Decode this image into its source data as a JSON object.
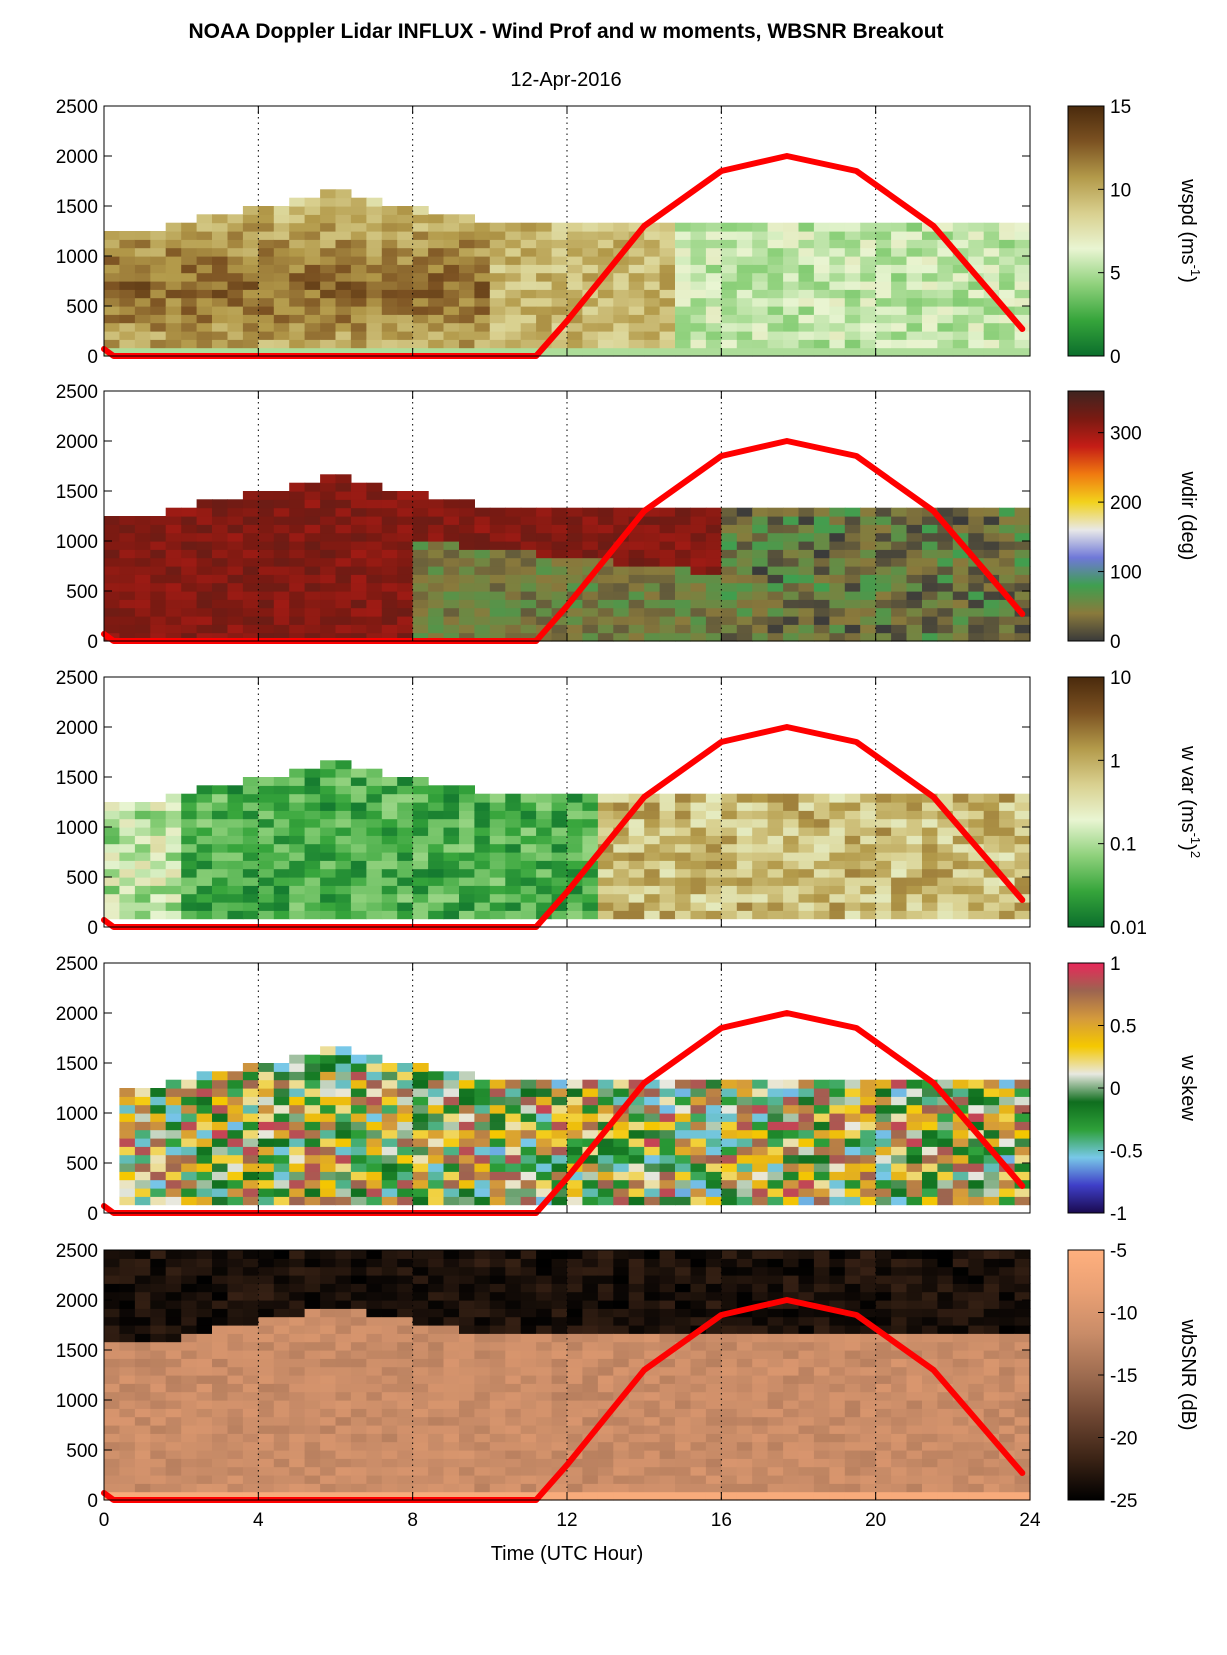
{
  "figure": {
    "title": "NOAA Doppler Lidar INFLUX - Wind Prof and w moments, WBSNR Breakout",
    "subtitle": "12-Apr-2016",
    "xlabel": "Time (UTC Hour)"
  },
  "chart_data": [
    {
      "type": "heatmap",
      "x_range": [
        0,
        24
      ],
      "xticks": [
        "0",
        "4",
        "8",
        "12",
        "16",
        "20",
        "24"
      ],
      "y_range": [
        0,
        2500
      ],
      "yticks": [
        "0",
        "500",
        "1000",
        "1500",
        "2000",
        "2500"
      ],
      "grid": "vertical dotted",
      "colorbar": {
        "label_main": "wspd (ms",
        "label_sup": "-1",
        "label_end": ")",
        "scale": "linear",
        "range": [
          0,
          15
        ],
        "ticks": [
          "0",
          "5",
          "10",
          "15"
        ],
        "colors": [
          "#0b6e2c",
          "#36a53b",
          "#8fd17c",
          "#e9f5d2",
          "#d9d08f",
          "#b39a4a",
          "#7c5222",
          "#4a2a0c"
        ]
      },
      "overlay": {
        "name": "",
        "color": "#ff0000",
        "x": [
          0,
          0.25,
          11.2,
          12,
          14,
          16,
          17.7,
          19.5,
          21.5,
          23.8
        ],
        "y": [
          70,
          0,
          0,
          350,
          1300,
          1850,
          2000,
          1850,
          1300,
          270
        ]
      }
    },
    {
      "type": "heatmap",
      "x_range": [
        0,
        24
      ],
      "xticks": [
        "0",
        "4",
        "8",
        "12",
        "16",
        "20",
        "24"
      ],
      "y_range": [
        0,
        2500
      ],
      "yticks": [
        "0",
        "500",
        "1000",
        "1500",
        "2000",
        "2500"
      ],
      "grid": "vertical dotted",
      "colorbar": {
        "label_main": "wdir (deg)",
        "label_sup": "",
        "label_end": "",
        "scale": "linear",
        "range": [
          0,
          360
        ],
        "ticks": [
          "0",
          "100",
          "200",
          "300"
        ],
        "colors": [
          "#3a3a3a",
          "#8a7a3c",
          "#3f9f4f",
          "#6f78d8",
          "#e8e8e8",
          "#f2d21c",
          "#f07a10",
          "#c51d16",
          "#7a1a12",
          "#3f2420"
        ]
      },
      "overlay": {
        "name": "",
        "color": "#ff0000",
        "x": [
          0,
          0.25,
          11.2,
          12,
          14,
          16,
          17.7,
          19.5,
          21.5,
          23.8
        ],
        "y": [
          70,
          0,
          0,
          350,
          1300,
          1850,
          2000,
          1850,
          1300,
          270
        ]
      }
    },
    {
      "type": "heatmap",
      "x_range": [
        0,
        24
      ],
      "xticks": [
        "0",
        "4",
        "8",
        "12",
        "16",
        "20",
        "24"
      ],
      "y_range": [
        0,
        2500
      ],
      "yticks": [
        "0",
        "500",
        "1000",
        "1500",
        "2000",
        "2500"
      ],
      "grid": "vertical dotted",
      "colorbar": {
        "label_main": "w var (ms",
        "label_sup": "-1",
        "label_end": ")",
        "label_sup2": "2",
        "scale": "log",
        "range": [
          0.01,
          10
        ],
        "ticks": [
          "0.01",
          "0.1",
          "1",
          "10"
        ],
        "colors": [
          "#0b6e2c",
          "#36a53b",
          "#8fd17c",
          "#e9f5d2",
          "#d9d08f",
          "#b39a4a",
          "#7c5222",
          "#4a2a0c"
        ]
      },
      "overlay": {
        "name": "",
        "color": "#ff0000",
        "x": [
          0,
          0.25,
          11.2,
          12,
          14,
          16,
          17.7,
          19.5,
          21.5,
          23.8
        ],
        "y": [
          70,
          0,
          0,
          350,
          1300,
          1850,
          2000,
          1850,
          1300,
          270
        ]
      }
    },
    {
      "type": "heatmap",
      "x_range": [
        0,
        24
      ],
      "xticks": [
        "0",
        "4",
        "8",
        "12",
        "16",
        "20",
        "24"
      ],
      "y_range": [
        0,
        2500
      ],
      "yticks": [
        "0",
        "500",
        "1000",
        "1500",
        "2000",
        "2500"
      ],
      "grid": "vertical dotted",
      "colorbar": {
        "label_main": "w skew",
        "label_sup": "",
        "label_end": "",
        "scale": "linear",
        "range": [
          -1,
          1
        ],
        "ticks": [
          "-1",
          "-0.5",
          "0",
          "0.5",
          "1"
        ],
        "colors": [
          "#1a0a50",
          "#3f3fc8",
          "#78c8e8",
          "#2ea039",
          "#0f6e1e",
          "#e8e8e0",
          "#f5c800",
          "#d49a3c",
          "#9c6450",
          "#e8285a"
        ]
      },
      "overlay": {
        "name": "",
        "color": "#ff0000",
        "x": [
          0,
          0.25,
          11.2,
          12,
          14,
          16,
          17.7,
          19.5,
          21.5,
          23.8
        ],
        "y": [
          70,
          0,
          0,
          350,
          1300,
          1850,
          2000,
          1850,
          1300,
          270
        ]
      }
    },
    {
      "type": "heatmap",
      "x_range": [
        0,
        24
      ],
      "xticks": [
        "0",
        "4",
        "8",
        "12",
        "16",
        "20",
        "24"
      ],
      "y_range": [
        0,
        2500
      ],
      "yticks": [
        "0",
        "500",
        "1000",
        "1500",
        "2000",
        "2500"
      ],
      "grid": "vertical dotted",
      "colorbar": {
        "label_main": "wbSNR (dB)",
        "label_sup": "",
        "label_end": "",
        "scale": "linear",
        "range": [
          -25,
          -5
        ],
        "ticks": [
          "-25",
          "-20",
          "-15",
          "-10",
          "-5"
        ],
        "colors": [
          "#000000",
          "#3c2416",
          "#6e4632",
          "#9e6c50",
          "#c98c68",
          "#e9a074",
          "#ffb07e"
        ]
      },
      "overlay": {
        "name": "",
        "color": "#ff0000",
        "x": [
          0,
          0.25,
          11.2,
          12,
          14,
          16,
          17.7,
          19.5,
          21.5,
          23.8
        ],
        "y": [
          70,
          0,
          0,
          350,
          1300,
          1850,
          2000,
          1850,
          1300,
          270
        ]
      }
    }
  ]
}
